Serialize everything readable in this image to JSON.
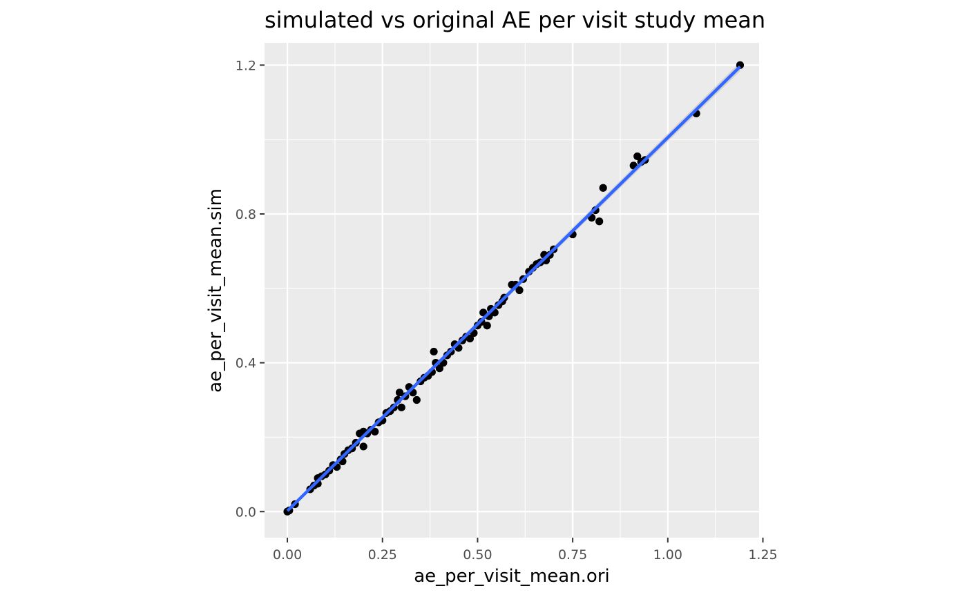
{
  "chart_data": {
    "type": "scatter",
    "title": "simulated vs original AE per visit study mean",
    "xlabel": "ae_per_visit_mean.ori",
    "ylabel": "ae_per_visit_mean.sim",
    "xlim": [
      -0.06,
      1.24
    ],
    "ylim": [
      -0.07,
      1.26
    ],
    "x_ticks": [
      0.0,
      0.25,
      0.5,
      0.75,
      1.0,
      1.25
    ],
    "x_tick_labels": [
      "0.00",
      "0.25",
      "0.50",
      "0.75",
      "1.00",
      "1.25"
    ],
    "y_ticks": [
      0.0,
      0.4,
      0.8,
      1.2
    ],
    "y_tick_labels": [
      "0.0",
      "0.4",
      "0.8",
      "1.2"
    ],
    "grid": true,
    "background": "#ebebeb",
    "grid_color": "#ffffff",
    "point_color": "#000000",
    "fit_line": {
      "x": [
        0.0,
        1.19
      ],
      "y": [
        0.002,
        1.196
      ],
      "color": "#3366ff",
      "band_color": "#c0c0c0"
    },
    "points": [
      {
        "x": 0.0,
        "y": 0.0
      },
      {
        "x": 0.005,
        "y": 0.003
      },
      {
        "x": 0.02,
        "y": 0.02
      },
      {
        "x": 0.06,
        "y": 0.06
      },
      {
        "x": 0.07,
        "y": 0.07
      },
      {
        "x": 0.08,
        "y": 0.09
      },
      {
        "x": 0.08,
        "y": 0.075
      },
      {
        "x": 0.09,
        "y": 0.095
      },
      {
        "x": 0.1,
        "y": 0.1
      },
      {
        "x": 0.11,
        "y": 0.11
      },
      {
        "x": 0.12,
        "y": 0.125
      },
      {
        "x": 0.13,
        "y": 0.12
      },
      {
        "x": 0.14,
        "y": 0.14
      },
      {
        "x": 0.145,
        "y": 0.135
      },
      {
        "x": 0.15,
        "y": 0.155
      },
      {
        "x": 0.16,
        "y": 0.165
      },
      {
        "x": 0.17,
        "y": 0.17
      },
      {
        "x": 0.18,
        "y": 0.185
      },
      {
        "x": 0.19,
        "y": 0.21
      },
      {
        "x": 0.2,
        "y": 0.175
      },
      {
        "x": 0.2,
        "y": 0.215
      },
      {
        "x": 0.21,
        "y": 0.21
      },
      {
        "x": 0.22,
        "y": 0.22
      },
      {
        "x": 0.23,
        "y": 0.215
      },
      {
        "x": 0.24,
        "y": 0.24
      },
      {
        "x": 0.25,
        "y": 0.245
      },
      {
        "x": 0.26,
        "y": 0.265
      },
      {
        "x": 0.27,
        "y": 0.27
      },
      {
        "x": 0.28,
        "y": 0.28
      },
      {
        "x": 0.29,
        "y": 0.3
      },
      {
        "x": 0.295,
        "y": 0.32
      },
      {
        "x": 0.3,
        "y": 0.28
      },
      {
        "x": 0.31,
        "y": 0.31
      },
      {
        "x": 0.32,
        "y": 0.335
      },
      {
        "x": 0.33,
        "y": 0.32
      },
      {
        "x": 0.34,
        "y": 0.3
      },
      {
        "x": 0.35,
        "y": 0.35
      },
      {
        "x": 0.36,
        "y": 0.36
      },
      {
        "x": 0.37,
        "y": 0.365
      },
      {
        "x": 0.38,
        "y": 0.375
      },
      {
        "x": 0.385,
        "y": 0.43
      },
      {
        "x": 0.39,
        "y": 0.4
      },
      {
        "x": 0.4,
        "y": 0.385
      },
      {
        "x": 0.41,
        "y": 0.4
      },
      {
        "x": 0.42,
        "y": 0.42
      },
      {
        "x": 0.43,
        "y": 0.43
      },
      {
        "x": 0.44,
        "y": 0.45
      },
      {
        "x": 0.45,
        "y": 0.44
      },
      {
        "x": 0.46,
        "y": 0.46
      },
      {
        "x": 0.47,
        "y": 0.47
      },
      {
        "x": 0.48,
        "y": 0.465
      },
      {
        "x": 0.49,
        "y": 0.48
      },
      {
        "x": 0.5,
        "y": 0.5
      },
      {
        "x": 0.51,
        "y": 0.51
      },
      {
        "x": 0.515,
        "y": 0.535
      },
      {
        "x": 0.525,
        "y": 0.5
      },
      {
        "x": 0.53,
        "y": 0.525
      },
      {
        "x": 0.535,
        "y": 0.545
      },
      {
        "x": 0.545,
        "y": 0.535
      },
      {
        "x": 0.555,
        "y": 0.555
      },
      {
        "x": 0.565,
        "y": 0.565
      },
      {
        "x": 0.57,
        "y": 0.575
      },
      {
        "x": 0.59,
        "y": 0.61
      },
      {
        "x": 0.6,
        "y": 0.61
      },
      {
        "x": 0.61,
        "y": 0.595
      },
      {
        "x": 0.62,
        "y": 0.625
      },
      {
        "x": 0.635,
        "y": 0.645
      },
      {
        "x": 0.645,
        "y": 0.655
      },
      {
        "x": 0.655,
        "y": 0.665
      },
      {
        "x": 0.665,
        "y": 0.67
      },
      {
        "x": 0.675,
        "y": 0.69
      },
      {
        "x": 0.68,
        "y": 0.675
      },
      {
        "x": 0.69,
        "y": 0.69
      },
      {
        "x": 0.7,
        "y": 0.705
      },
      {
        "x": 0.75,
        "y": 0.745
      },
      {
        "x": 0.8,
        "y": 0.79
      },
      {
        "x": 0.81,
        "y": 0.81
      },
      {
        "x": 0.82,
        "y": 0.78
      },
      {
        "x": 0.83,
        "y": 0.87
      },
      {
        "x": 0.91,
        "y": 0.93
      },
      {
        "x": 0.92,
        "y": 0.955
      },
      {
        "x": 0.93,
        "y": 0.94
      },
      {
        "x": 0.94,
        "y": 0.945
      },
      {
        "x": 1.075,
        "y": 1.07
      },
      {
        "x": 1.19,
        "y": 1.2
      }
    ]
  }
}
